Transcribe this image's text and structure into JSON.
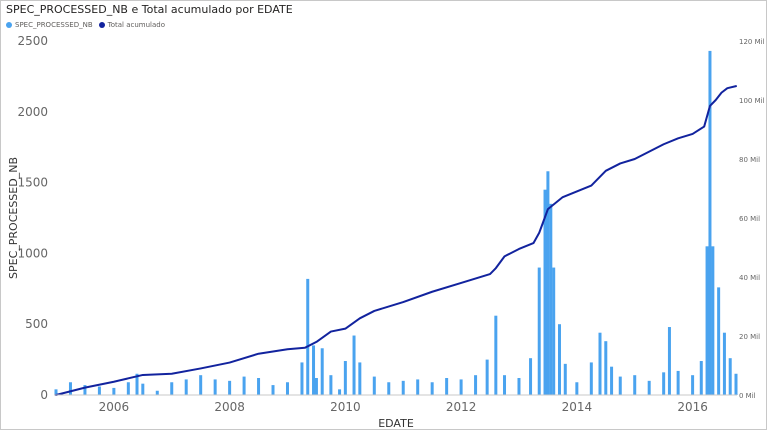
{
  "visual": {
    "title": "SPEC_PROCESSED_NB e Total acumulado por EDATE"
  },
  "legend": {
    "items": [
      {
        "label": "SPEC_PROCESSED_NB",
        "color": "#4aa3ef"
      },
      {
        "label": "Total acumulado",
        "color": "#12239e"
      }
    ]
  },
  "chart_data": {
    "type": "bar",
    "title": "SPEC_PROCESSED_NB e Total acumulado por EDATE",
    "xlabel": "EDATE",
    "ylabel": "SPEC_PROCESSED_NB",
    "y2label": "",
    "xlim": [
      2005.0,
      2016.75
    ],
    "ylim": [
      0,
      2500
    ],
    "y2lim": [
      0,
      120
    ],
    "x_ticks": [
      "2006",
      "2008",
      "2010",
      "2012",
      "2014",
      "2016"
    ],
    "x_tick_values": [
      2006,
      2008,
      2010,
      2012,
      2014,
      2016
    ],
    "y_ticks": [
      0,
      500,
      1000,
      1500,
      2000,
      2500
    ],
    "y2_ticks": [
      "0 Mil",
      "20 Mil",
      "40 Mil",
      "60 Mil",
      "80 Mil",
      "100 Mil",
      "120 Mil"
    ],
    "y2_tick_values": [
      0,
      20,
      40,
      60,
      80,
      100,
      120
    ],
    "grid": false,
    "legend_position": "top-left",
    "series": [
      {
        "name": "SPEC_PROCESSED_NB",
        "type": "bar",
        "axis": "left",
        "color": "#4aa3ef",
        "x": [
          2005.0,
          2005.25,
          2005.5,
          2005.75,
          2006.0,
          2006.25,
          2006.4,
          2006.5,
          2006.75,
          2007.0,
          2007.25,
          2007.5,
          2007.75,
          2008.0,
          2008.25,
          2008.5,
          2008.75,
          2009.0,
          2009.25,
          2009.35,
          2009.45,
          2009.5,
          2009.6,
          2009.75,
          2009.9,
          2010.0,
          2010.15,
          2010.25,
          2010.5,
          2010.75,
          2011.0,
          2011.25,
          2011.5,
          2011.75,
          2012.0,
          2012.25,
          2012.45,
          2012.6,
          2012.75,
          2013.0,
          2013.2,
          2013.35,
          2013.45,
          2013.5,
          2013.55,
          2013.6,
          2013.7,
          2013.8,
          2014.0,
          2014.25,
          2014.4,
          2014.5,
          2014.6,
          2014.75,
          2015.0,
          2015.25,
          2015.5,
          2015.6,
          2015.75,
          2016.0,
          2016.15,
          2016.25,
          2016.3,
          2016.35,
          2016.45,
          2016.55,
          2016.65,
          2016.75
        ],
        "values": [
          40,
          90,
          70,
          60,
          50,
          90,
          150,
          80,
          30,
          90,
          110,
          140,
          110,
          100,
          130,
          120,
          70,
          90,
          230,
          820,
          350,
          120,
          330,
          140,
          40,
          240,
          420,
          230,
          130,
          90,
          100,
          110,
          90,
          120,
          110,
          140,
          250,
          560,
          140,
          120,
          260,
          900,
          1450,
          1580,
          1350,
          900,
          500,
          220,
          90,
          230,
          440,
          380,
          200,
          130,
          140,
          100,
          160,
          480,
          170,
          140,
          240,
          1050,
          2430,
          1050,
          760,
          440,
          260,
          150
        ]
      },
      {
        "name": "Total acumulado",
        "type": "line",
        "axis": "right",
        "color": "#12239e",
        "x": [
          2005.0,
          2005.5,
          2006.0,
          2006.5,
          2007.0,
          2007.5,
          2008.0,
          2008.5,
          2009.0,
          2009.3,
          2009.5,
          2009.75,
          2010.0,
          2010.25,
          2010.5,
          2011.0,
          2011.5,
          2012.0,
          2012.5,
          2012.6,
          2012.75,
          2013.0,
          2013.25,
          2013.35,
          2013.5,
          2013.75,
          2014.0,
          2014.25,
          2014.5,
          2014.75,
          2015.0,
          2015.25,
          2015.5,
          2015.75,
          2016.0,
          2016.2,
          2016.3,
          2016.4,
          2016.5,
          2016.6,
          2016.75
        ],
        "values": [
          0,
          2.5,
          4.5,
          6.8,
          7.2,
          9.0,
          11.0,
          14.0,
          15.5,
          16.0,
          18.0,
          21.5,
          22.5,
          26.0,
          28.5,
          31.5,
          35.0,
          38.0,
          41.0,
          43.0,
          47.0,
          49.5,
          51.5,
          55.0,
          63.0,
          67.0,
          69.0,
          71.0,
          76.0,
          78.5,
          80.0,
          82.5,
          85.0,
          87.0,
          88.5,
          91.0,
          98.0,
          100.0,
          102.5,
          104.0,
          104.7
        ]
      }
    ]
  }
}
